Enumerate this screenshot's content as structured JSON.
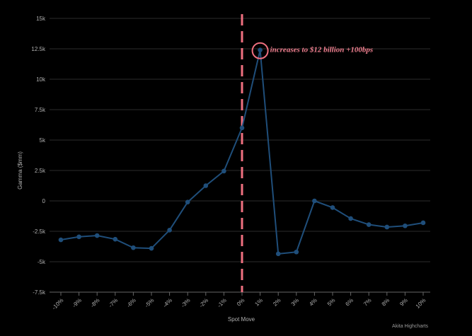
{
  "chart_data": {
    "type": "line",
    "xlabel": "Spot Move",
    "ylabel": "Gamma ($mm)",
    "ylim": [
      -7500,
      15000
    ],
    "yticks": [
      -7500,
      -5000,
      -2500,
      0,
      2500,
      5000,
      7500,
      10000,
      12500,
      15000
    ],
    "ytick_labels": [
      "-7.5k",
      "-5k",
      "-2.5k",
      "0",
      "2.5k",
      "5k",
      "7.5k",
      "10k",
      "12.5k",
      "15k"
    ],
    "categories": [
      "-10%",
      "-9%",
      "-8%",
      "-7%",
      "-6%",
      "-5%",
      "-4%",
      "-3%",
      "-2%",
      "-1%",
      "0%",
      "1%",
      "2%",
      "3%",
      "4%",
      "5%",
      "6%",
      "7%",
      "8%",
      "9%",
      "10%"
    ],
    "series": [
      {
        "color": "#1f4e7a",
        "values": [
          -3200,
          -2950,
          -2850,
          -3150,
          -3850,
          -3900,
          -2400,
          -100,
          1250,
          2450,
          6000,
          12400,
          -4350,
          -4200,
          0,
          -550,
          -1450,
          -1950,
          -2150,
          -2050,
          -1800
        ]
      }
    ],
    "reference_line": {
      "x": "0%",
      "color": "#f07080",
      "style": "dashed"
    },
    "annotation": {
      "text": "increases to $12 billion +100bps",
      "x": "1%",
      "y": 12400,
      "color": "#f07080"
    },
    "grid": true,
    "credits": "Akita Highcharts"
  }
}
